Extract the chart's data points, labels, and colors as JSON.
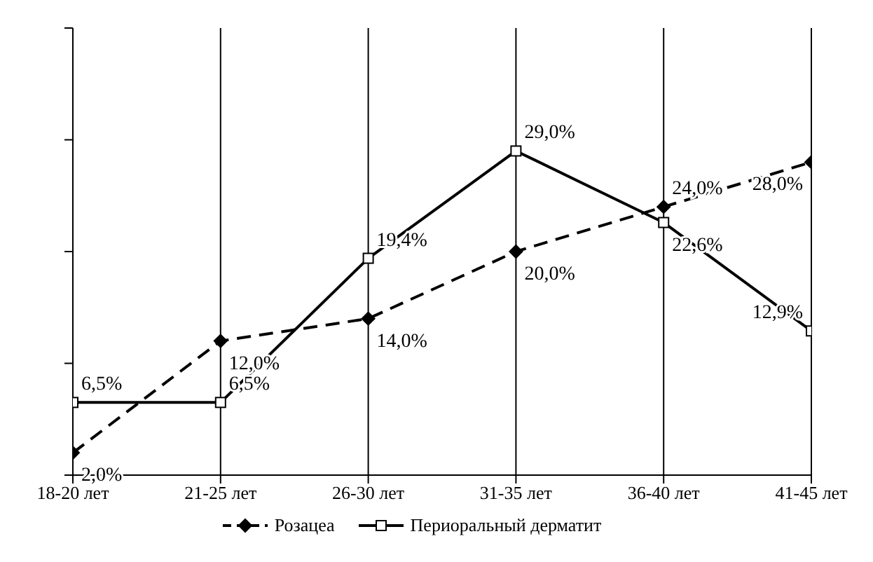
{
  "chart_data": {
    "type": "line",
    "categories": [
      "18-20 лет",
      "21-25 лет",
      "26-30 лет",
      "31-35 лет",
      "36-40 лет",
      "41-45 лет"
    ],
    "series": [
      {
        "name": "Розацеа",
        "color": "#000000",
        "values": [
          2.0,
          12.0,
          14.0,
          20.0,
          24.0,
          28.0
        ],
        "value_labels": [
          "2,0%",
          "12,0%",
          "14,0%",
          "20,0%",
          "24,0%",
          "28,0%"
        ],
        "marker": "diamond",
        "line_style": "dashed"
      },
      {
        "name": "Периоральный дерматит",
        "color": "#000000",
        "values": [
          6.5,
          6.5,
          19.4,
          29.0,
          22.6,
          12.9
        ],
        "value_labels": [
          "6,5%",
          "6,5%",
          "19,4%",
          "29,0%",
          "22,6%",
          "12,9%"
        ],
        "marker": "square",
        "line_style": "solid"
      }
    ],
    "ylim": [
      0,
      40
    ],
    "yticks": [
      {
        "value": 0,
        "label": null
      },
      {
        "value": 10,
        "label": null
      },
      {
        "value": 20,
        "label": null
      },
      {
        "value": 30,
        "label": null
      },
      {
        "value": 40,
        "label": null
      }
    ],
    "tick_labels": "x",
    "grid": "x",
    "legend": "bottom"
  }
}
